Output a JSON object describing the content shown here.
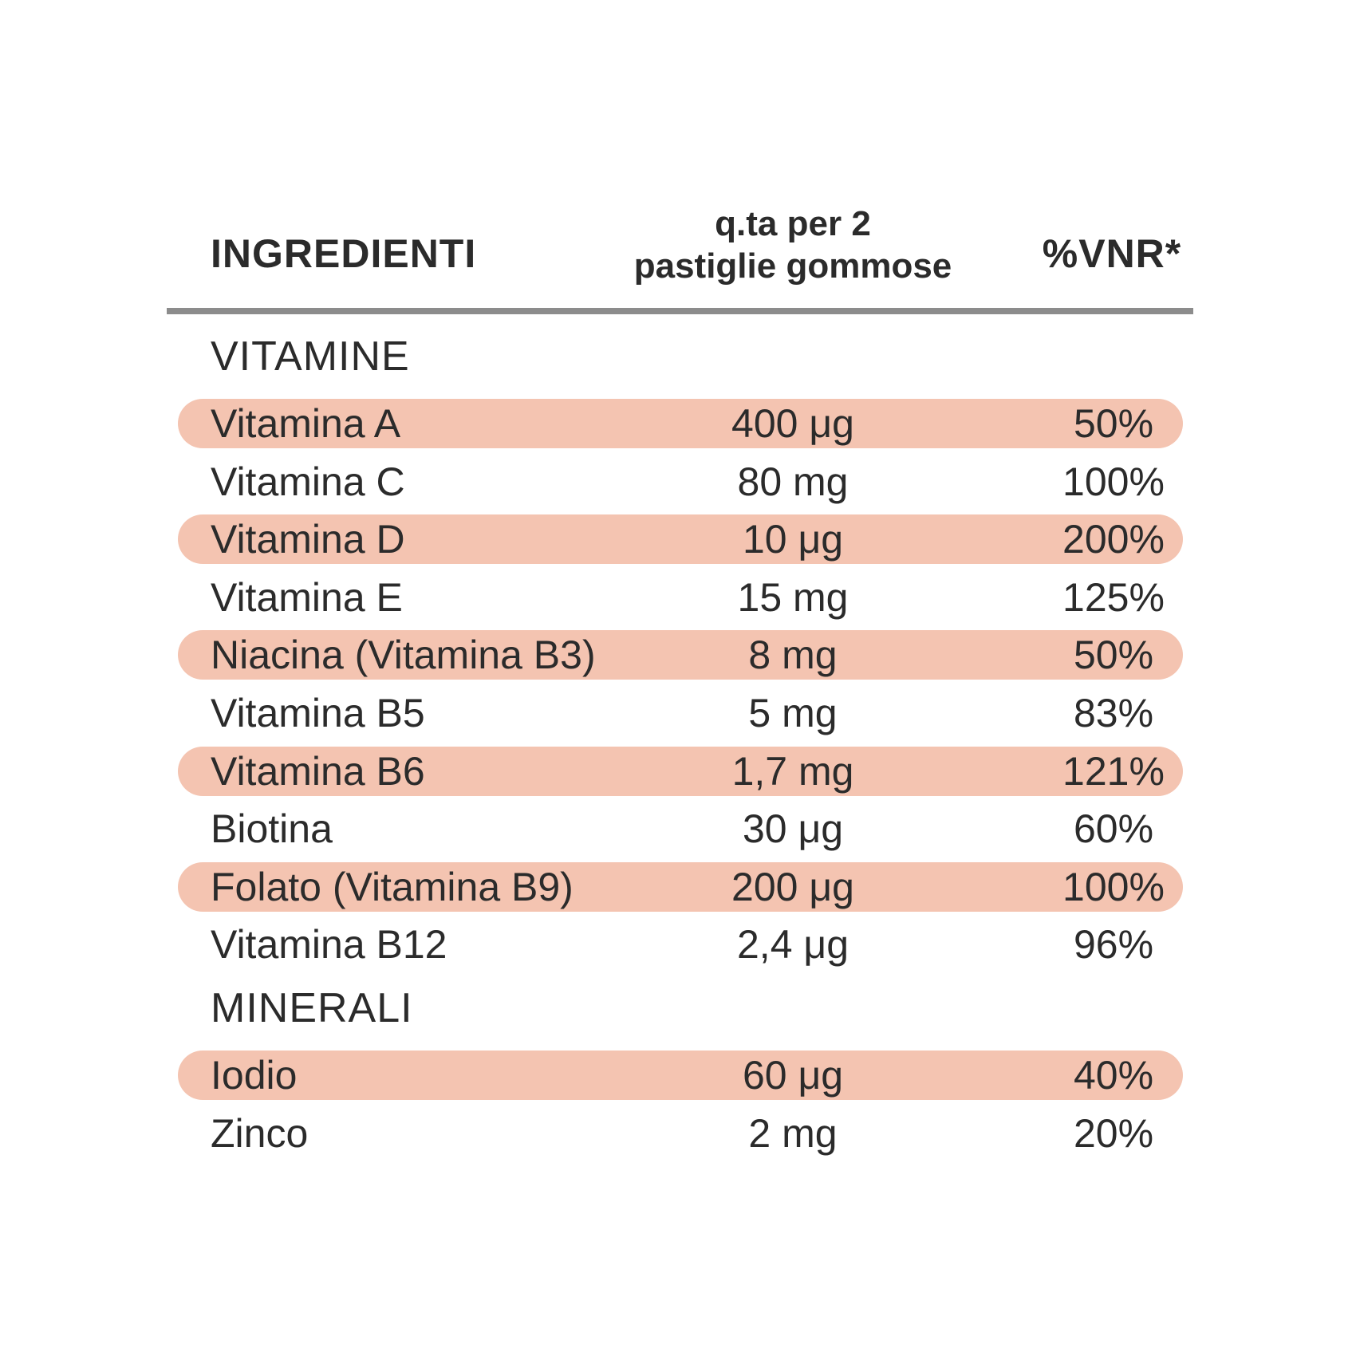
{
  "header": {
    "ingredients": "INGREDIENTI",
    "quantity": [
      "q.ta per 2",
      "pastiglie gommose"
    ],
    "vnr": "%VNR*"
  },
  "sections": [
    {
      "title": "VITAMINE",
      "rows": [
        [
          "Vitamina A",
          "400 μg",
          "50%"
        ],
        [
          "Vitamina C",
          "80 mg",
          "100%"
        ],
        [
          "Vitamina D",
          "10 μg",
          "200%"
        ],
        [
          "Vitamina E",
          "15 mg",
          "125%"
        ],
        [
          "Niacina (Vitamina B3)",
          "8 mg",
          "50%"
        ],
        [
          "Vitamina B5",
          "5 mg",
          "83%"
        ],
        [
          "Vitamina B6",
          "1,7 mg",
          "121%"
        ],
        [
          "Biotina",
          "30 μg",
          "60%"
        ],
        [
          "Folato (Vitamina B9)",
          "200 μg",
          "100%"
        ],
        [
          "Vitamina B12",
          "2,4 μg",
          "96%"
        ]
      ]
    },
    {
      "title": "MINERALI",
      "rows": [
        [
          "Iodio",
          "60 μg",
          "40%"
        ],
        [
          "Zinco",
          "2 mg",
          "20%"
        ]
      ]
    }
  ]
}
